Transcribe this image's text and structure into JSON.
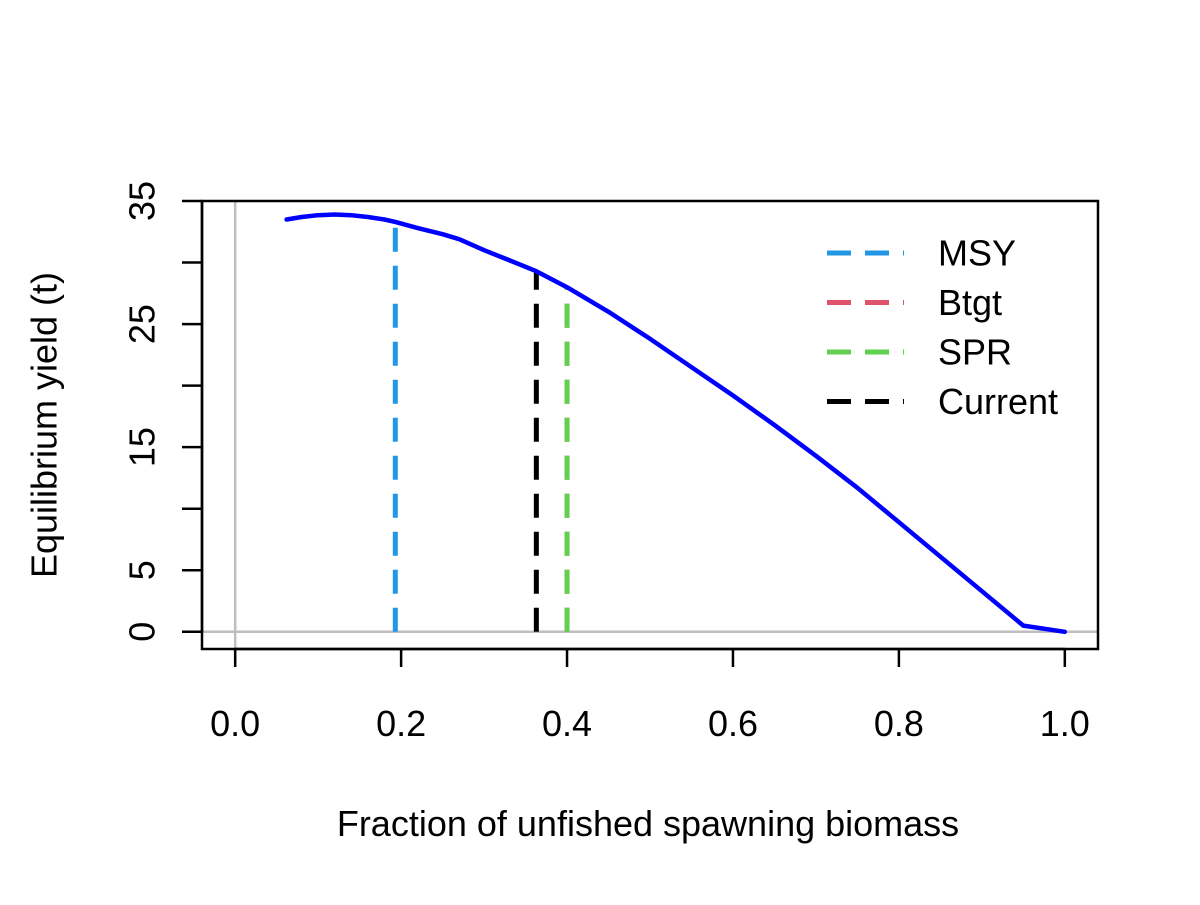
{
  "chart_data": {
    "type": "line",
    "title": "",
    "xlabel": "Fraction of unfished spawning biomass",
    "ylabel": "Equilibrium yield (t)",
    "xlim": [
      -0.04,
      1.04
    ],
    "ylim": [
      -1.4,
      35.0
    ],
    "x_ticks": [
      0.0,
      0.2,
      0.4,
      0.6,
      0.8,
      1.0
    ],
    "x_tick_labels": [
      "0.0",
      "0.2",
      "0.4",
      "0.6",
      "0.8",
      "1.0"
    ],
    "y_ticks": [
      0,
      5,
      10,
      15,
      20,
      25,
      30,
      35
    ],
    "y_tick_labels": [
      "0",
      "5",
      "",
      "15",
      "",
      "25",
      "",
      "35"
    ],
    "grid": false,
    "reference_lines": [
      {
        "orientation": "horizontal",
        "y": 0,
        "color": "#bebebe"
      },
      {
        "orientation": "vertical",
        "x": 0,
        "color": "#bebebe"
      }
    ],
    "series": [
      {
        "kind": "curve",
        "color": "#0000ff",
        "x": [
          0.062,
          0.08,
          0.1,
          0.12,
          0.14,
          0.16,
          0.18,
          0.193,
          0.22,
          0.25,
          0.27,
          0.3,
          0.33,
          0.363,
          0.4,
          0.45,
          0.5,
          0.55,
          0.6,
          0.65,
          0.7,
          0.75,
          0.8,
          0.85,
          0.9,
          0.95,
          1.0
        ],
        "y": [
          33.5,
          33.7,
          33.85,
          33.9,
          33.85,
          33.7,
          33.5,
          33.3,
          32.8,
          32.3,
          31.9,
          31.0,
          30.2,
          29.3,
          28.0,
          26.0,
          23.8,
          21.5,
          19.2,
          16.8,
          14.3,
          11.7,
          8.9,
          6.1,
          3.3,
          0.5,
          0.0
        ]
      },
      {
        "name": "MSY",
        "kind": "vline",
        "color": "#2297e6",
        "x": 0.193,
        "y_top": 33.3
      },
      {
        "name": "Btgt",
        "kind": "vline",
        "color": "#df536b",
        "x": 0.4,
        "y_top": 28.0
      },
      {
        "name": "SPR",
        "kind": "vline",
        "color": "#61d04f",
        "x": 0.4,
        "y_top": 28.0
      },
      {
        "name": "Current",
        "kind": "vline",
        "color": "#000000",
        "x": 0.363,
        "y_top": 29.3
      }
    ],
    "legend": {
      "placement": "top-right",
      "entries": [
        {
          "label": "MSY",
          "color": "#2297e6"
        },
        {
          "label": "Btgt",
          "color": "#df536b"
        },
        {
          "label": "SPR",
          "color": "#61d04f"
        },
        {
          "label": "Current",
          "color": "#000000"
        }
      ]
    }
  }
}
